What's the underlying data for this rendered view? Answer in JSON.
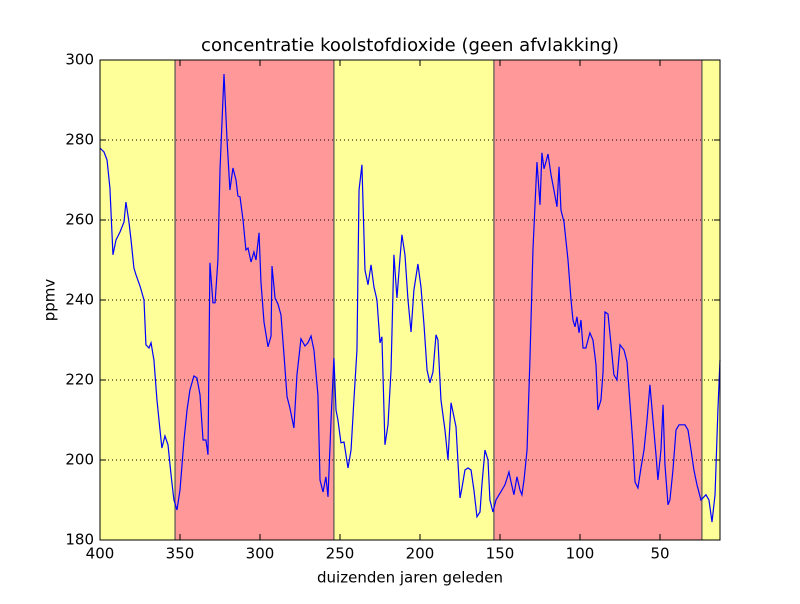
{
  "chart_data": {
    "type": "line",
    "title": "concentratie koolstofdioxide (geen afvlakking)",
    "x_label": "duizenden jaren geleden",
    "y_label": "ppmv",
    "color": "#0000ff",
    "xlim": [
      400,
      12.5
    ],
    "ylim": [
      180,
      300
    ],
    "xticks": [
      400,
      350,
      300,
      250,
      200,
      150,
      100,
      50
    ],
    "yticks": [
      180,
      200,
      220,
      240,
      260,
      280,
      300
    ],
    "grid": "y",
    "bands": [
      {
        "from": 400,
        "to": 353.1,
        "color": "#ffff99"
      },
      {
        "from": 353.1,
        "to": 253.8,
        "color": "#ff9999"
      },
      {
        "from": 253.8,
        "to": 153.8,
        "color": "#ffff99"
      },
      {
        "from": 153.8,
        "to": 23.8,
        "color": "#ff9999"
      },
      {
        "from": 23.8,
        "to": 12.5,
        "color": "#ffff99"
      }
    ],
    "x": [
      400,
      397.5,
      395.6,
      393.8,
      391.9,
      390,
      387.5,
      385,
      383.8,
      381.9,
      380.6,
      378.8,
      377.5,
      375,
      372.5,
      371.3,
      369.4,
      368.1,
      366.3,
      364.4,
      362.5,
      361.3,
      359.4,
      357.5,
      355.6,
      353.8,
      351.9,
      350,
      347.5,
      345.6,
      343.8,
      341.3,
      339.4,
      337.5,
      335.6,
      333.8,
      332.5,
      331.3,
      329.4,
      328.1,
      326.3,
      325,
      322.5,
      320.6,
      318.8,
      316.9,
      315,
      313.8,
      312.5,
      310.6,
      308.8,
      307.5,
      305.6,
      303.8,
      302.5,
      300.6,
      299.4,
      297.5,
      295,
      293.1,
      292.5,
      290.6,
      288.8,
      286.9,
      285,
      283.1,
      281.3,
      278.8,
      276.9,
      274.4,
      271.9,
      270,
      268.1,
      266.3,
      263.8,
      262.5,
      260.6,
      258.8,
      257.5,
      255.6,
      253.8,
      252.5,
      251.3,
      249.4,
      247.5,
      245,
      243.1,
      241.3,
      239.4,
      238.1,
      236.3,
      234.4,
      232.5,
      230.6,
      228.8,
      226.9,
      225,
      223.8,
      221.9,
      220,
      218.1,
      216.3,
      214.4,
      212.5,
      211.3,
      209.4,
      207.5,
      205.6,
      203.8,
      201.3,
      199.4,
      197.5,
      195.6,
      193.8,
      191.9,
      190,
      188.8,
      186.9,
      184.4,
      182.5,
      180.6,
      179.4,
      177.5,
      175,
      173.8,
      171.9,
      170,
      168.1,
      166.3,
      164.4,
      162.5,
      161.3,
      159.4,
      157.5,
      156.3,
      154.4,
      152.5,
      150.6,
      148.8,
      146.9,
      144.4,
      143.1,
      141.3,
      139.4,
      137.5,
      136.3,
      135,
      133.1,
      131.3,
      129.4,
      126.9,
      125,
      123.8,
      122.5,
      121.3,
      120,
      118.1,
      116.3,
      114.4,
      113.1,
      111.9,
      110,
      107.5,
      105.6,
      104.4,
      103.1,
      101.9,
      100.6,
      99.4,
      98.1,
      96.3,
      95,
      93.8,
      91.9,
      90,
      88.8,
      86.9,
      85.6,
      84.4,
      82.5,
      80.6,
      78.8,
      76.9,
      75,
      72.5,
      70.6,
      68.8,
      66.9,
      65.6,
      63.8,
      61.9,
      60,
      58.1,
      56.3,
      54.4,
      52.5,
      51.3,
      49.4,
      48.1,
      46.9,
      45,
      43.8,
      41.9,
      40,
      38.1,
      34.4,
      32.5,
      30.6,
      28.8,
      26.9,
      24.4,
      22.5,
      21.3,
      19.4,
      17.5,
      15.6,
      13.8,
      12.5
    ],
    "values": [
      278,
      277,
      275,
      268,
      251.3,
      255,
      257,
      259.5,
      264.5,
      259.5,
      255,
      248,
      246.3,
      243.5,
      240,
      228.8,
      228,
      229.3,
      225,
      215,
      207.5,
      203,
      206,
      203.8,
      196.3,
      190,
      187.5,
      192.5,
      205,
      212.5,
      217.5,
      221,
      220.5,
      216.3,
      205,
      205,
      201.3,
      249.3,
      239.3,
      239.3,
      250,
      272.5,
      296.5,
      280,
      267.5,
      273,
      270,
      266,
      265.8,
      260,
      252.5,
      253,
      249.5,
      252,
      250,
      256.8,
      244.5,
      234.5,
      228.3,
      231,
      248.5,
      240.5,
      239,
      236.3,
      226.3,
      215.8,
      213,
      208,
      221.3,
      230.3,
      228.5,
      229.3,
      231,
      227.5,
      216.3,
      195,
      192,
      195.8,
      190.8,
      210,
      225.5,
      212.5,
      210,
      204.3,
      204.5,
      198,
      202.5,
      215,
      227.5,
      267.5,
      273.8,
      247.5,
      243.8,
      248.8,
      243.3,
      240,
      229.3,
      230.8,
      203.8,
      208.8,
      222.5,
      251.3,
      240.5,
      250.5,
      256.3,
      251.3,
      240,
      232,
      242.5,
      249,
      243.3,
      233.8,
      222.5,
      219.3,
      222,
      231.3,
      230,
      215,
      207.5,
      200,
      214.3,
      212,
      208.3,
      190.5,
      193,
      197.5,
      198,
      197.5,
      192.5,
      185.8,
      187,
      193.8,
      202.5,
      200,
      190,
      187,
      190,
      191.3,
      192.5,
      193.8,
      197,
      194.5,
      191.3,
      195.8,
      192.5,
      191.3,
      195,
      202.5,
      225,
      252.5,
      274.5,
      263.8,
      276.8,
      272.8,
      274.5,
      276.5,
      271.3,
      267.5,
      263.3,
      273.3,
      262.5,
      259.5,
      250,
      240,
      235,
      233.3,
      235.8,
      231.8,
      235,
      228,
      228,
      230,
      231.8,
      230,
      223.8,
      212.5,
      215,
      222,
      237,
      236.5,
      228.8,
      221.3,
      220,
      228.8,
      227.5,
      224.5,
      214.3,
      203.8,
      194.5,
      193,
      198,
      202.5,
      210,
      218.8,
      210,
      201.3,
      195,
      202.5,
      213.8,
      198.8,
      188.8,
      190,
      197.5,
      207.5,
      208.8,
      208.8,
      207.5,
      202.5,
      197.5,
      193.8,
      190,
      190.8,
      191.3,
      190,
      184.5,
      191.3,
      212.5,
      225
    ]
  }
}
